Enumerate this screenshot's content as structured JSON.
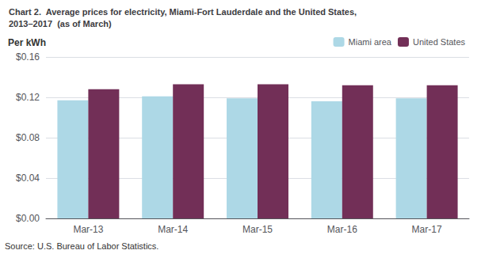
{
  "chart_data": {
    "type": "bar",
    "title": "Chart 2.  Average prices for electricity, Miami-Fort Lauderdale and the United States,",
    "subtitle": "2013–2017  (as of March)",
    "ylabel": "Per kWh",
    "source": "Source: U.S. Bureau of Labor Statistics.",
    "categories": [
      "Mar-13",
      "Mar-14",
      "Mar-15",
      "Mar-16",
      "Mar-17"
    ],
    "series": [
      {
        "name": "Miami area",
        "color": "#add8e6",
        "values": [
          0.117,
          0.121,
          0.119,
          0.116,
          0.119
        ]
      },
      {
        "name": "United States",
        "color": "#722f57",
        "values": [
          0.128,
          0.133,
          0.133,
          0.132,
          0.132
        ]
      }
    ],
    "ylim": [
      0,
      0.16
    ],
    "yticks": [
      {
        "value": 0.0,
        "label": "$0.00"
      },
      {
        "value": 0.04,
        "label": "$0.04"
      },
      {
        "value": 0.08,
        "label": "$0.08"
      },
      {
        "value": 0.12,
        "label": "$0.12"
      },
      {
        "value": 0.16,
        "label": "$0.16"
      }
    ],
    "grid": true,
    "legend": "upper right"
  }
}
